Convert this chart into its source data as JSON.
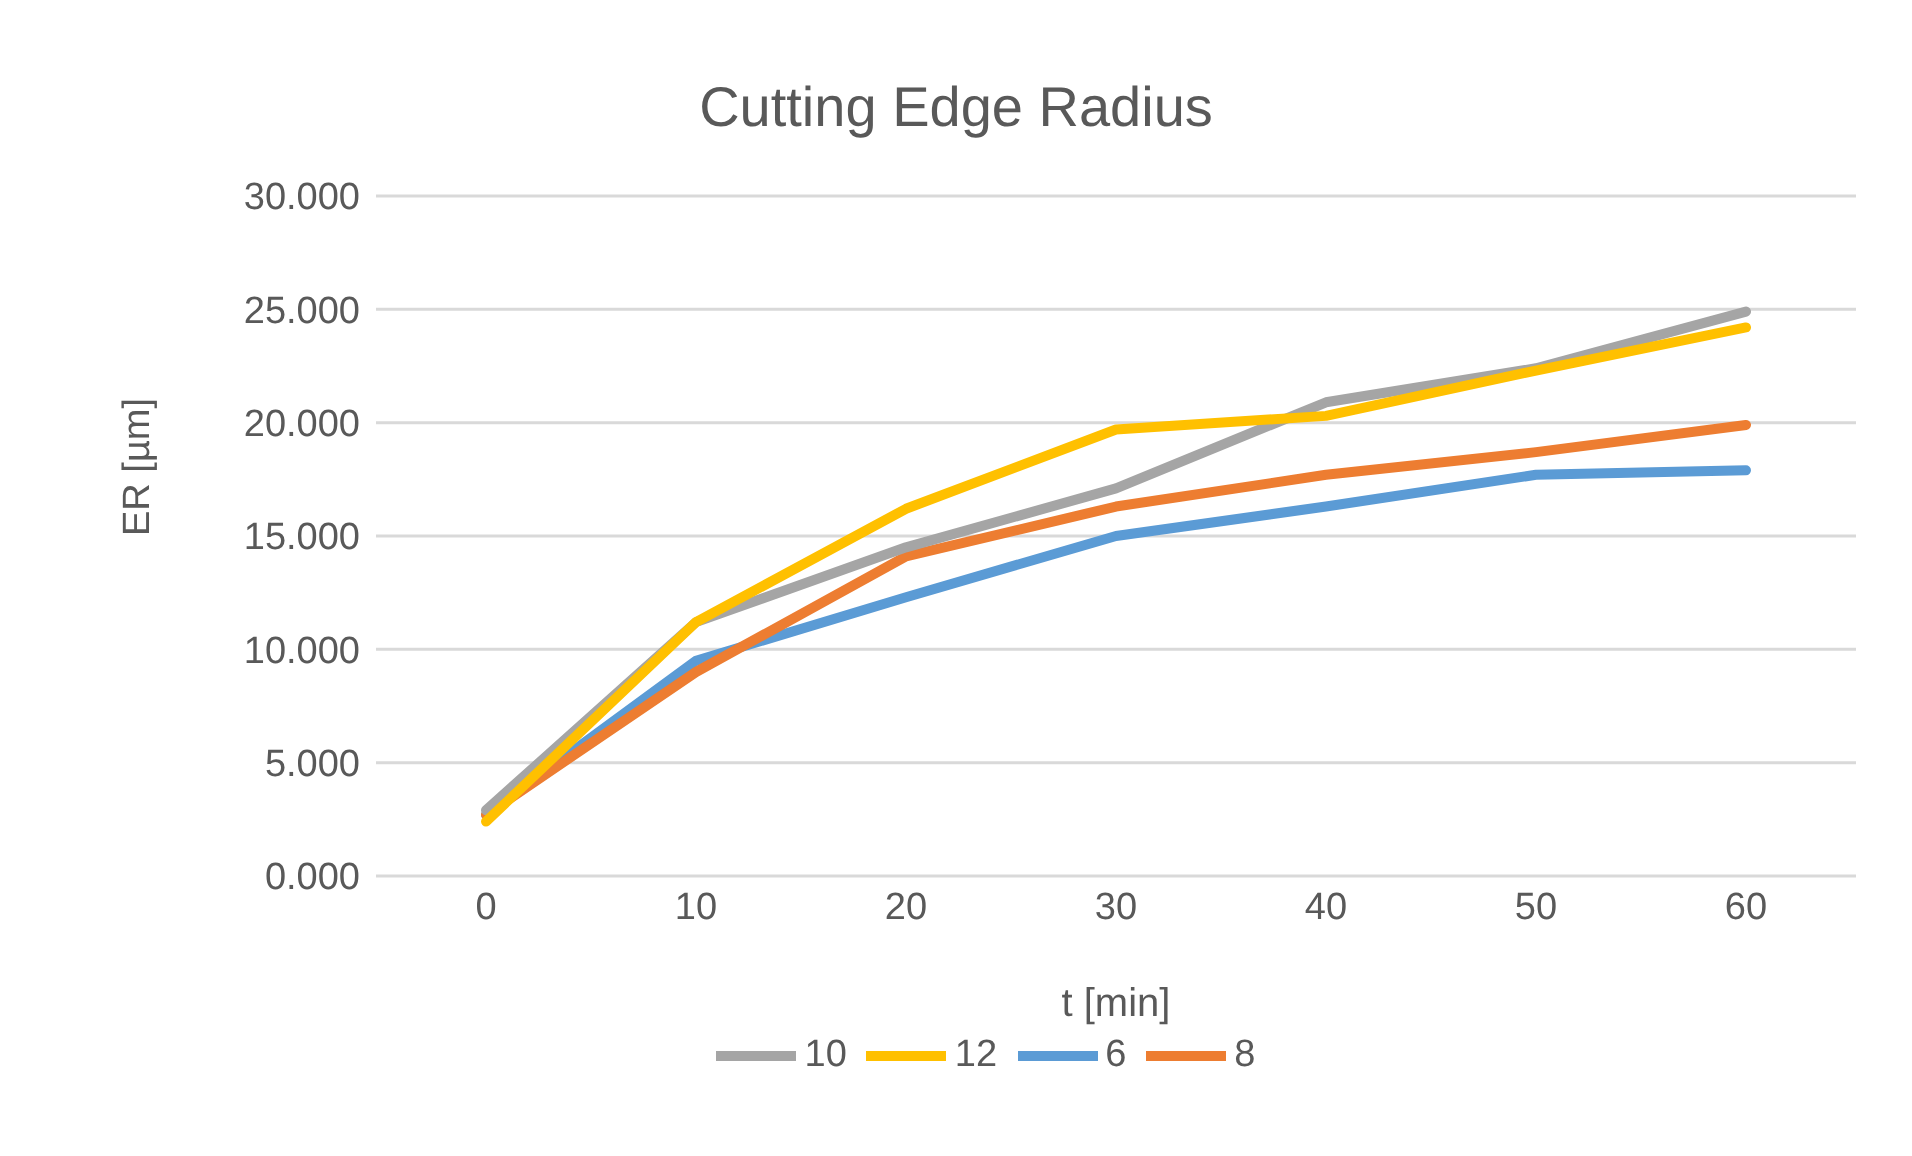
{
  "chart_data": {
    "type": "line",
    "title": "Cutting Edge Radius",
    "xlabel": "t [min]",
    "ylabel": "ER [µm]",
    "categories": [
      "0",
      "10",
      "20",
      "30",
      "40",
      "50",
      "60"
    ],
    "series": [
      {
        "name": "6",
        "color": "#5b9bd5",
        "values": [
          2.7,
          9.5,
          12.3,
          15.0,
          16.3,
          17.7,
          17.9
        ]
      },
      {
        "name": "8",
        "color": "#ed7d31",
        "values": [
          2.7,
          9.0,
          14.1,
          16.3,
          17.7,
          18.7,
          19.9
        ]
      },
      {
        "name": "10",
        "color": "#a5a5a5",
        "values": [
          2.9,
          11.2,
          14.5,
          17.1,
          20.9,
          22.4,
          24.9
        ]
      },
      {
        "name": "12",
        "color": "#ffc000",
        "values": [
          2.4,
          11.2,
          16.2,
          19.7,
          20.3,
          22.3,
          24.2
        ]
      }
    ],
    "ylim": [
      0,
      30
    ],
    "yticks": [
      {
        "value": 0,
        "label": "0.000"
      },
      {
        "value": 5,
        "label": "5.000"
      },
      {
        "value": 10,
        "label": "10.000"
      },
      {
        "value": 15,
        "label": "15.000"
      },
      {
        "value": 20,
        "label": "20.000"
      },
      {
        "value": 25,
        "label": "25.000"
      },
      {
        "value": 30,
        "label": "30.000"
      }
    ],
    "grid": "y",
    "legend": "bottom",
    "marker": "none",
    "line_style": "solid"
  }
}
